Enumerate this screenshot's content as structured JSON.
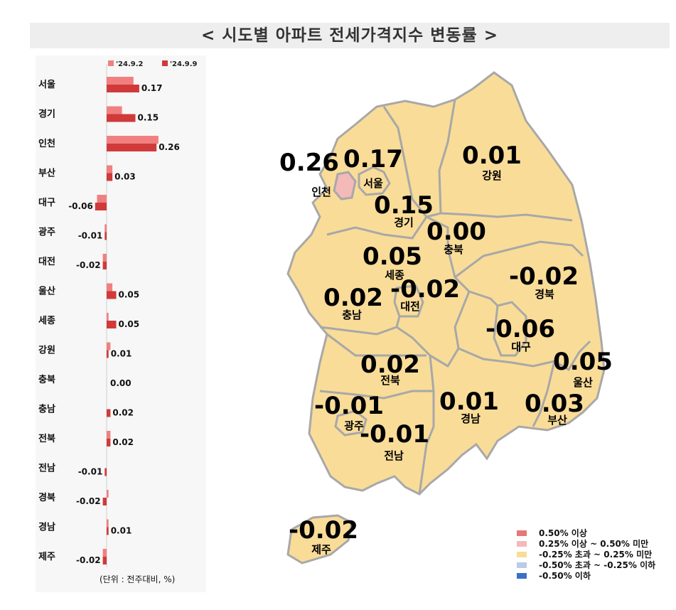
{
  "title": "< 시도별 아파트 전세가격지수 변동률 >",
  "chart_data": {
    "type": "bar",
    "orientation": "horizontal",
    "categories": [
      "서울",
      "경기",
      "인천",
      "부산",
      "대구",
      "광주",
      "대전",
      "울산",
      "세종",
      "강원",
      "충북",
      "충남",
      "전북",
      "전남",
      "경북",
      "경남",
      "제주"
    ],
    "series": [
      {
        "name": "'24.9.2",
        "color": "#f08080",
        "values": [
          0.14,
          0.08,
          0.27,
          0.03,
          -0.05,
          -0.01,
          -0.02,
          0.03,
          0.01,
          0.02,
          0.0,
          0.0,
          0.02,
          0.0,
          0.01,
          0.01,
          -0.02
        ]
      },
      {
        "name": "'24.9.9",
        "color": "#d13a3a",
        "values": [
          0.17,
          0.15,
          0.26,
          0.03,
          -0.06,
          -0.01,
          -0.02,
          0.05,
          0.05,
          0.01,
          0.0,
          0.02,
          0.02,
          -0.01,
          -0.02,
          0.01,
          -0.02
        ]
      }
    ],
    "value_labels": [
      "0.17",
      "0.15",
      "0.26",
      "0.03",
      "-0.06",
      "-0.01",
      "-0.02",
      "0.05",
      "0.05",
      "0.01",
      "0.00",
      "0.02",
      "0.02",
      "-0.01",
      "-0.02",
      "0.01",
      "-0.02"
    ],
    "legend_position": "top",
    "unit_note": "(단위 : 전주대비, %)"
  },
  "map": {
    "regions": [
      {
        "name": "인천",
        "value": "0.26",
        "color": "#f4b9b9"
      },
      {
        "name": "서울",
        "value": "0.17",
        "color": "#f9dc98"
      },
      {
        "name": "경기",
        "value": "0.15",
        "color": "#f9dc98"
      },
      {
        "name": "강원",
        "value": "0.01",
        "color": "#f9dc98"
      },
      {
        "name": "충북",
        "value": "0.00",
        "color": "#f9dc98"
      },
      {
        "name": "세종",
        "value": "0.05",
        "color": "#f9dc98"
      },
      {
        "name": "대전",
        "value": "-0.02",
        "color": "#f9dc98"
      },
      {
        "name": "충남",
        "value": "0.02",
        "color": "#f9dc98"
      },
      {
        "name": "경북",
        "value": "-0.02",
        "color": "#f9dc98"
      },
      {
        "name": "대구",
        "value": "-0.06",
        "color": "#f9dc98"
      },
      {
        "name": "울산",
        "value": "0.05",
        "color": "#f9dc98"
      },
      {
        "name": "전북",
        "value": "0.02",
        "color": "#f9dc98"
      },
      {
        "name": "광주",
        "value": "-0.01",
        "color": "#f9dc98"
      },
      {
        "name": "경남",
        "value": "0.01",
        "color": "#f9dc98"
      },
      {
        "name": "부산",
        "value": "0.03",
        "color": "#f9dc98"
      },
      {
        "name": "전남",
        "value": "-0.01",
        "color": "#f9dc98"
      },
      {
        "name": "제주",
        "value": "-0.02",
        "color": "#f9dc98"
      }
    ],
    "border_color": "#a8a8a8"
  },
  "legend": [
    {
      "label": "0.50% 이상",
      "color": "#e57777"
    },
    {
      "label": "0.25% 이상 ~ 0.50% 미만",
      "color": "#f4b9b9"
    },
    {
      "label": "-0.25% 초과 ~ 0.25% 미만",
      "color": "#f9dc98"
    },
    {
      "label": "-0.50% 초과 ~ -0.25% 이하",
      "color": "#b9cbe6"
    },
    {
      "label": "-0.50% 이하",
      "color": "#3a6fc7"
    }
  ]
}
